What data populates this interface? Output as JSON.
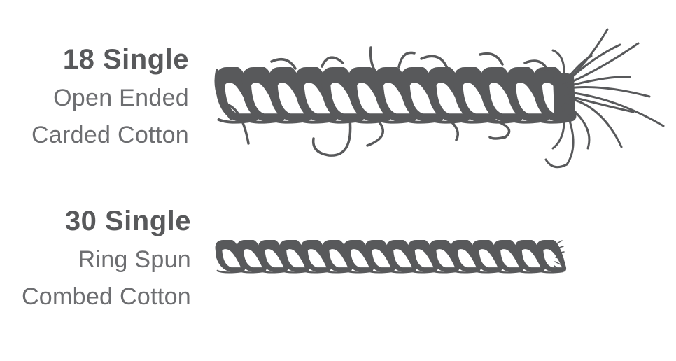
{
  "yarns": [
    {
      "id": "yarn-18",
      "title": "18 Single",
      "line1": "Open Ended",
      "line2": "Carded Cotton"
    },
    {
      "id": "yarn-30",
      "title": "30 Single",
      "line1": "Ring Spun",
      "line2": "Combed Cotton"
    }
  ],
  "colors": {
    "yarn_fill": "#58595b",
    "text_title": "#58595b",
    "text_sub": "#6d6e71",
    "background": "#ffffff"
  }
}
